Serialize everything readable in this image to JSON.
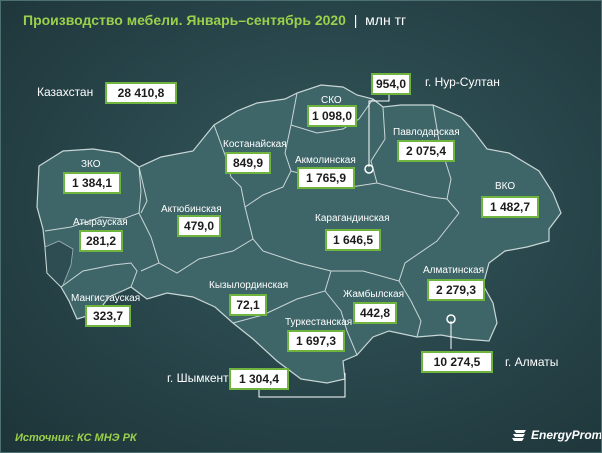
{
  "header": {
    "title": "Производство мебели. Январь–сентябрь 2020",
    "unit": "млн тг"
  },
  "total": {
    "label": "Казахстан",
    "value": "28 410,8"
  },
  "regions": [
    {
      "id": "zko",
      "name": "ЗКО",
      "value": "1 384,1"
    },
    {
      "id": "aktobe",
      "name": "Актюбинская",
      "value": "479,0"
    },
    {
      "id": "kostanay",
      "name": "Костанайская",
      "value": "849,9"
    },
    {
      "id": "sko",
      "name": "СКО",
      "value": "1 098,0"
    },
    {
      "id": "nur-sultan",
      "name": "г. Нур-Султан",
      "value": "954,0"
    },
    {
      "id": "pavlodar",
      "name": "Павлодарская",
      "value": "2 075,4"
    },
    {
      "id": "akmola",
      "name": "Акмолинская",
      "value": "1 765,9"
    },
    {
      "id": "vko",
      "name": "ВКО",
      "value": "1 482,7"
    },
    {
      "id": "atyrau",
      "name": "Атырауская",
      "value": "281,2"
    },
    {
      "id": "karaganda",
      "name": "Карагандинская",
      "value": "1 646,5"
    },
    {
      "id": "mangistau",
      "name": "Мангистауская",
      "value": "323,7"
    },
    {
      "id": "kyzylorda",
      "name": "Кызылординская",
      "value": "72,1"
    },
    {
      "id": "almaty-obl",
      "name": "Алматинская",
      "value": "2 279,3"
    },
    {
      "id": "zhambyl",
      "name": "Жамбылская",
      "value": "442,8"
    },
    {
      "id": "turkestan",
      "name": "Туркестанская",
      "value": "1 697,3"
    },
    {
      "id": "shymkent",
      "name": "г. Шымкент",
      "value": "1 304,4"
    },
    {
      "id": "almaty",
      "name": "г. Алматы",
      "value": "10 274,5"
    }
  ],
  "footer": {
    "source": "Источник: КС МНЭ РК",
    "brand": "EnergyProm"
  },
  "colors": {
    "background": "#274449",
    "territory": "#3e6568",
    "border_lines": "#c9d6d6",
    "accent": "#9ad04b",
    "box_border": "#6fb43f"
  },
  "icons": [
    "city-marker-icon",
    "energyprom-logo-icon"
  ]
}
